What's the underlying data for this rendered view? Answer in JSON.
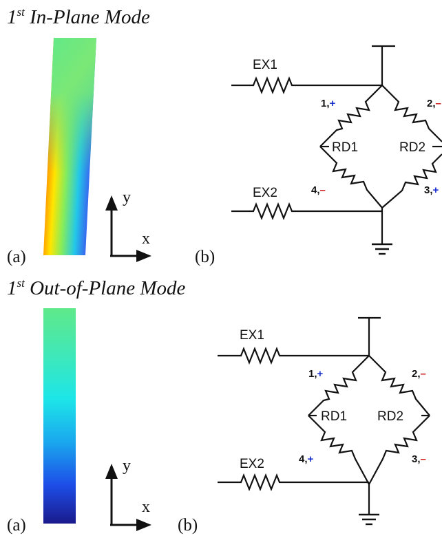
{
  "panels": [
    {
      "title_ordinal": "1",
      "title_sup": "st",
      "title_text": " In-Plane Mode",
      "label_a": "(a)",
      "label_b": "(b)",
      "axis_y": "y",
      "axis_x": "x",
      "bridge": {
        "ex1": "EX1",
        "ex2": "EX2",
        "rd1": "RD1",
        "rd2": "RD2",
        "r1_num": "1,",
        "r1_sign": "+",
        "r2_num": "2,",
        "r2_sign": "–",
        "r3_num": "3,",
        "r3_sign": "+",
        "r4_num": "4,",
        "r4_sign": "–"
      }
    },
    {
      "title_ordinal": "1",
      "title_sup": "st",
      "title_text": " Out-of-Plane Mode",
      "label_a": "(a)",
      "label_b": "(b)",
      "axis_y": "y",
      "axis_x": "x",
      "bridge": {
        "ex1": "EX1",
        "ex2": "EX2",
        "rd1": "RD1",
        "rd2": "RD2",
        "r1_num": "1,",
        "r1_sign": "+",
        "r2_num": "2,",
        "r2_sign": "–",
        "r3_num": "3,",
        "r3_sign": "–",
        "r4_num": "4,",
        "r4_sign": "+"
      }
    }
  ],
  "colors": {
    "plus": "#1a2fd0",
    "minus": "#d01818",
    "ink": "#111111"
  }
}
